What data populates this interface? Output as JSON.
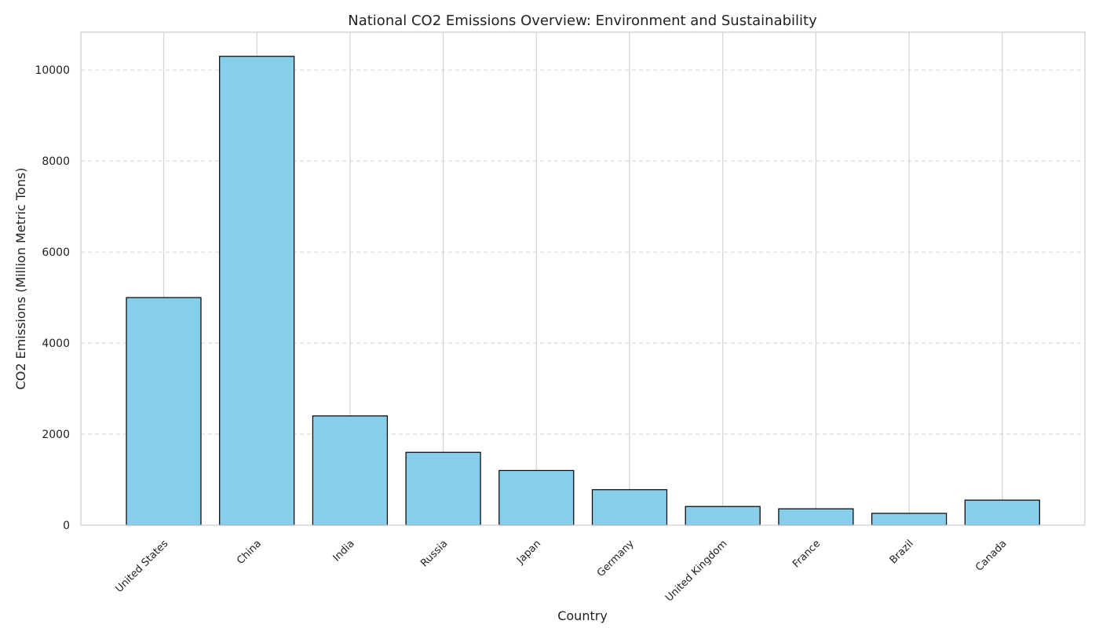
{
  "chart_data": {
    "type": "bar",
    "title": "National CO2 Emissions Overview: Environment and Sustainability",
    "xlabel": "Country",
    "ylabel": "CO2 Emissions (Million Metric Tons)",
    "categories": [
      "United States",
      "China",
      "India",
      "Russia",
      "Japan",
      "Germany",
      "United Kingdom",
      "France",
      "Brazil",
      "Canada"
    ],
    "values": [
      5000,
      10300,
      2400,
      1600,
      1200,
      780,
      410,
      360,
      260,
      550
    ],
    "ylim": [
      0,
      10830
    ],
    "yticks": [
      0,
      2000,
      4000,
      6000,
      8000,
      10000
    ],
    "grid": "y dashed, x solid",
    "colors": {
      "bar": "#87CEEB",
      "edge": "#000000",
      "grid": "#d3d3d3",
      "frame": "#cccccc"
    }
  }
}
